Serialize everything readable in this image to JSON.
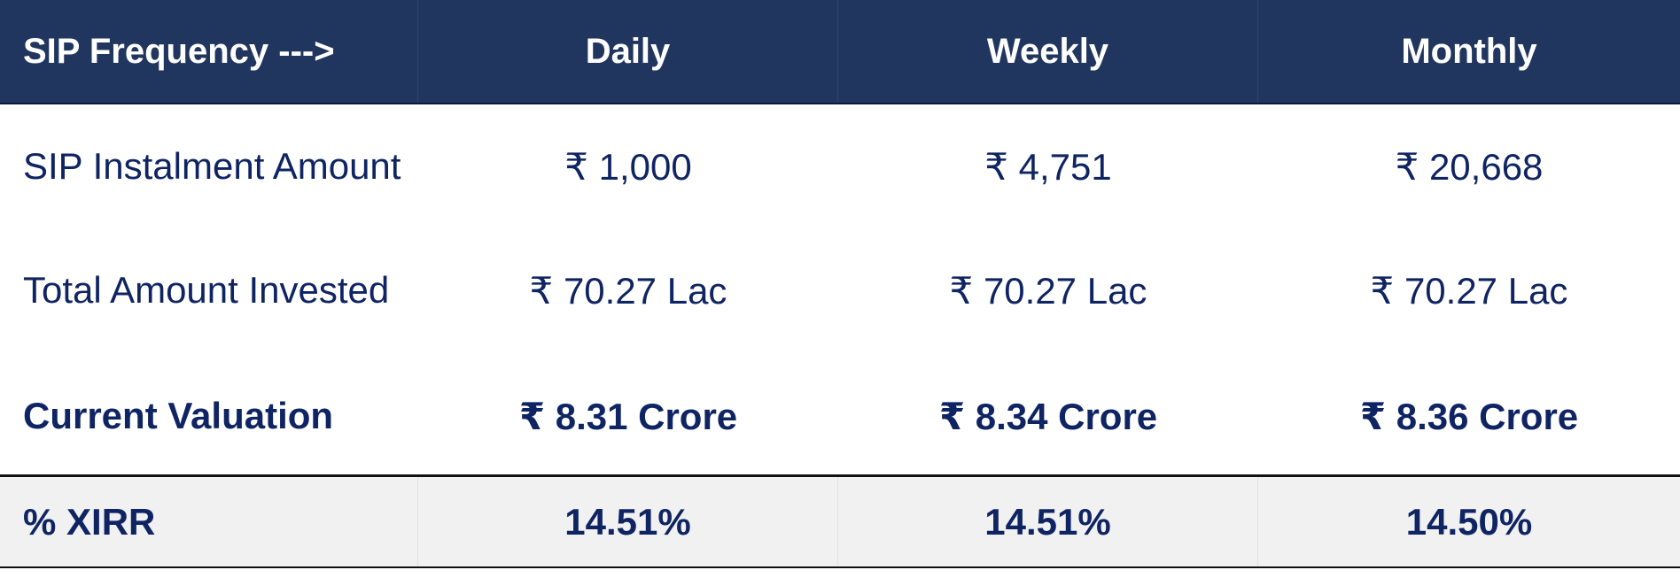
{
  "table": {
    "headers": [
      "SIP Frequency --->",
      "Daily",
      "Weekly",
      "Monthly"
    ],
    "rows": [
      {
        "label": "SIP Instalment Amount",
        "values": [
          "₹ 1,000",
          "₹ 4,751",
          "₹ 20,668"
        ]
      },
      {
        "label": "Total Amount Invested",
        "values": [
          "₹ 70.27 Lac",
          "₹ 70.27 Lac",
          "₹ 70.27 Lac"
        ]
      },
      {
        "label": "Current Valuation",
        "values": [
          "₹ 8.31 Crore",
          "₹ 8.34 Crore",
          "₹ 8.36 Crore"
        ]
      }
    ],
    "footer": {
      "label": "% XIRR",
      "values": [
        "14.51%",
        "14.51%",
        "14.50%"
      ]
    }
  },
  "colors": {
    "header_bg": "#21365f",
    "header_text": "#ffffff",
    "body_text": "#0f2462",
    "footer_bg": "#f1f1f1"
  }
}
